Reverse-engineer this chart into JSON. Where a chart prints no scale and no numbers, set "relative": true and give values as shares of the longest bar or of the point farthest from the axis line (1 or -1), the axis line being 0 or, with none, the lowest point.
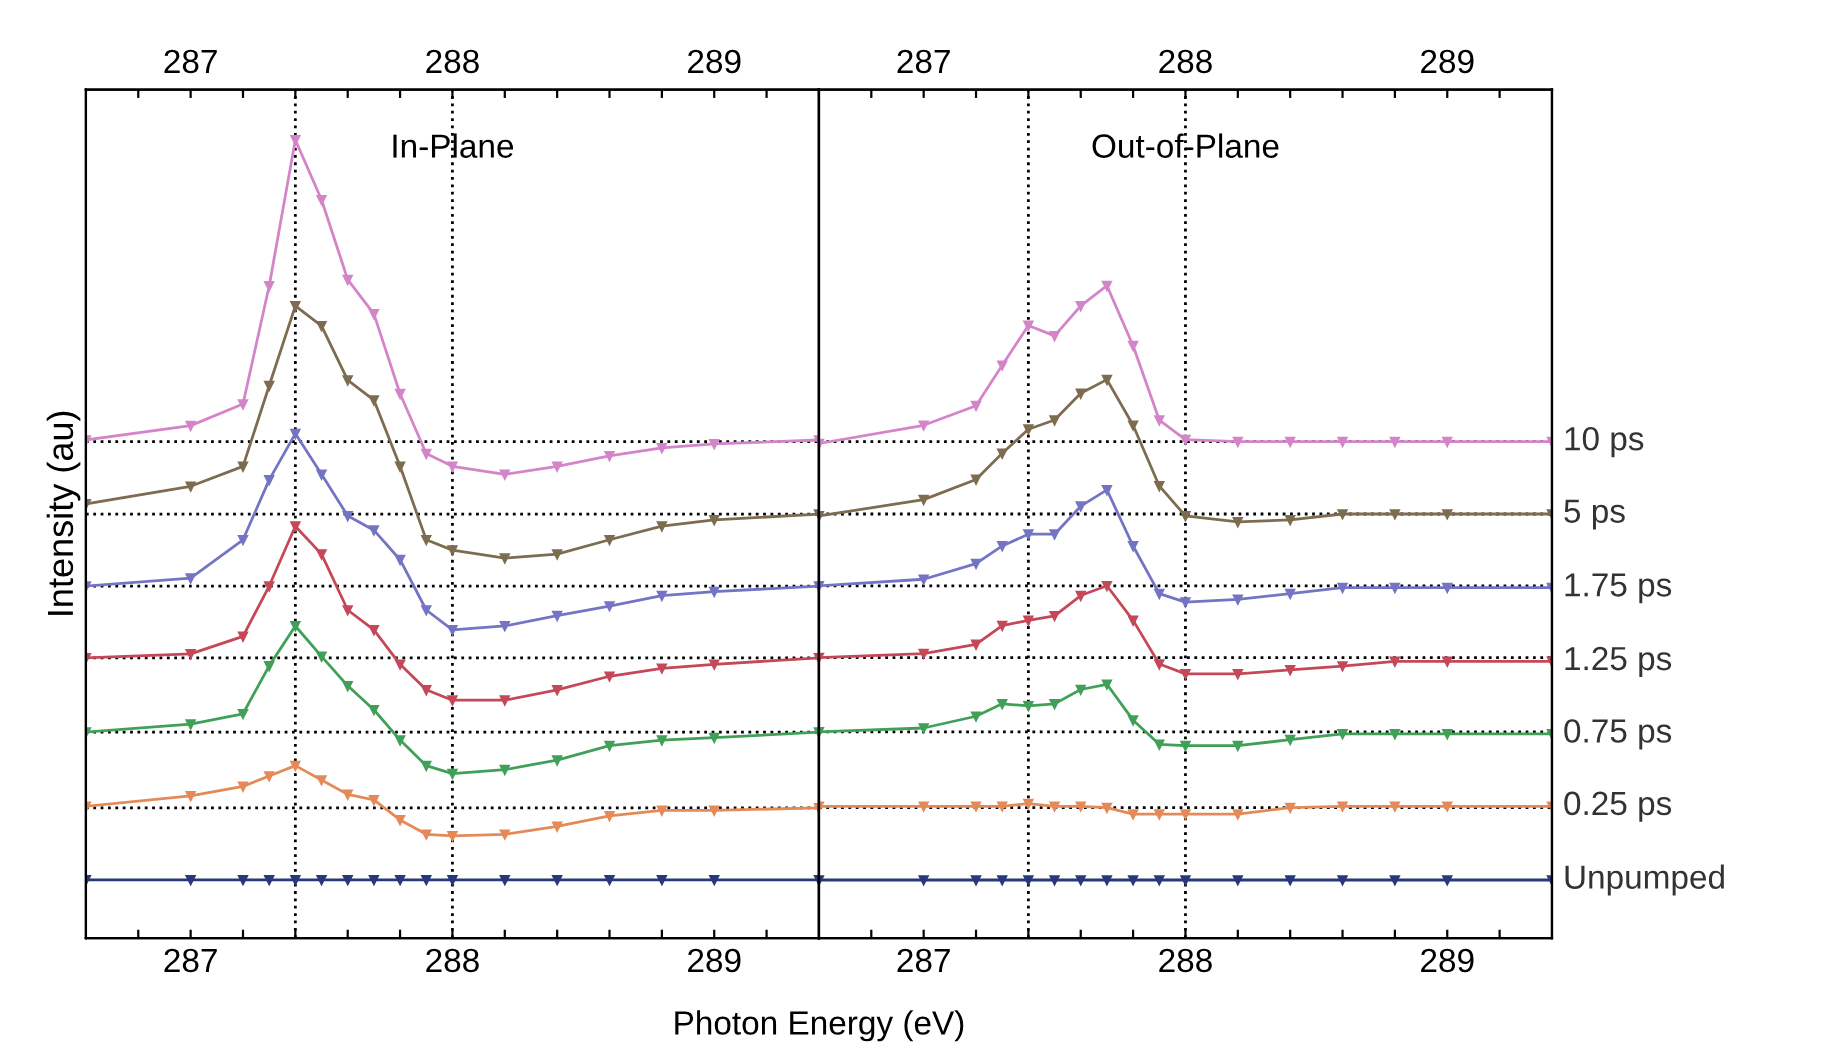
{
  "chart_data": [
    {
      "type": "line",
      "title": "In-Plane",
      "xlabel": "Photon Energy (eV)",
      "ylabel": "Intensity (au)",
      "relative": true,
      "marker": "triangle",
      "line_style": "solid",
      "legend": false,
      "grid": false,
      "x": [
        286.6,
        287.0,
        287.2,
        287.3,
        287.4,
        287.5,
        287.6,
        287.7,
        287.8,
        287.9,
        288.0,
        288.2,
        288.4,
        288.6,
        288.8,
        289.0,
        289.4
      ],
      "xlim": [
        286.6,
        289.4
      ],
      "x2lim": [
        286.6,
        289.4
      ],
      "xticks": [
        {
          "value": 286.8,
          "label": null
        },
        287,
        {
          "value": 287.2,
          "label": null
        },
        {
          "value": 287.4,
          "label": null
        },
        {
          "value": 287.6,
          "label": null
        },
        {
          "value": 287.8,
          "label": null
        },
        288,
        {
          "value": 288.2,
          "label": null
        },
        {
          "value": 288.4,
          "label": null
        },
        {
          "value": 288.6,
          "label": null
        },
        {
          "value": 288.8,
          "label": null
        },
        289,
        {
          "value": 289.2,
          "label": null
        }
      ],
      "x2ticks": [
        {
          "value": 286.8,
          "label": null
        },
        287,
        {
          "value": 287.2,
          "label": null
        },
        {
          "value": 287.4,
          "label": null
        },
        {
          "value": 287.6,
          "label": null
        },
        {
          "value": 287.8,
          "label": null
        },
        288,
        {
          "value": 288.2,
          "label": null
        },
        {
          "value": 288.4,
          "label": null
        },
        {
          "value": 288.6,
          "label": null
        },
        {
          "value": 288.8,
          "label": null
        },
        289,
        {
          "value": 289.2,
          "label": null
        }
      ],
      "tick_labels": "x",
      "series": [
        {
          "color": "#d484c8",
          "values": [
            0.624,
            0.642,
            0.669,
            0.817,
            1.0,
            0.925,
            0.825,
            0.782,
            0.682,
            0.607,
            0.591,
            0.581,
            0.591,
            0.604,
            0.614,
            0.619,
            0.624
          ]
        },
        {
          "color": "#7d6c4f",
          "values": [
            0.544,
            0.566,
            0.591,
            0.692,
            0.792,
            0.767,
            0.699,
            0.674,
            0.591,
            0.499,
            0.486,
            0.476,
            0.481,
            0.499,
            0.516,
            0.524,
            0.531
          ]
        },
        {
          "color": "#7474c4",
          "values": [
            0.441,
            0.451,
            0.499,
            0.574,
            0.632,
            0.581,
            0.529,
            0.511,
            0.474,
            0.411,
            0.386,
            0.391,
            0.404,
            0.416,
            0.429,
            0.434,
            0.441
          ]
        },
        {
          "color": "#c44858",
          "values": [
            0.351,
            0.356,
            0.378,
            0.441,
            0.516,
            0.481,
            0.411,
            0.386,
            0.343,
            0.311,
            0.298,
            0.298,
            0.311,
            0.328,
            0.338,
            0.343,
            0.351
          ]
        },
        {
          "color": "#40a058",
          "values": [
            0.258,
            0.268,
            0.281,
            0.341,
            0.391,
            0.353,
            0.316,
            0.286,
            0.248,
            0.216,
            0.206,
            0.211,
            0.223,
            0.241,
            0.248,
            0.251,
            0.258
          ]
        },
        {
          "color": "#e48a58",
          "values": [
            0.165,
            0.178,
            0.19,
            0.203,
            0.216,
            0.198,
            0.18,
            0.173,
            0.148,
            0.13,
            0.128,
            0.13,
            0.14,
            0.153,
            0.16,
            0.16,
            0.163
          ]
        },
        {
          "color": "#283878",
          "values": [
            0.073,
            0.073,
            0.073,
            0.073,
            0.073,
            0.073,
            0.073,
            0.073,
            0.073,
            0.073,
            0.073,
            0.073,
            0.073,
            0.073,
            0.073,
            0.073,
            0.073
          ]
        }
      ],
      "ref_lines": [
        {
          "axis": "x",
          "value": 287.4,
          "color": "#000000",
          "line_style": "dotted"
        },
        {
          "axis": "x",
          "value": 288,
          "color": "#000000",
          "line_style": "dotted"
        },
        {
          "axis": "y",
          "value": 0.622,
          "color": "#000000",
          "line_style": "dotted"
        },
        {
          "axis": "y",
          "value": 0.531,
          "color": "#000000",
          "line_style": "dotted"
        },
        {
          "axis": "y",
          "value": 0.441,
          "color": "#000000",
          "line_style": "dotted"
        },
        {
          "axis": "y",
          "value": 0.351,
          "color": "#000000",
          "line_style": "dotted"
        },
        {
          "axis": "y",
          "value": 0.258,
          "color": "#000000",
          "line_style": "dotted"
        },
        {
          "axis": "y",
          "value": 0.163,
          "color": "#000000",
          "line_style": "dotted"
        }
      ]
    },
    {
      "type": "line",
      "title": "Out-of-Plane",
      "relative": true,
      "marker": "triangle",
      "line_style": "solid",
      "legend": false,
      "grid": false,
      "x": [
        286.6,
        287.0,
        287.2,
        287.3,
        287.4,
        287.5,
        287.6,
        287.7,
        287.8,
        287.9,
        288.0,
        288.2,
        288.4,
        288.6,
        288.8,
        289.0,
        289.4
      ],
      "xlim": [
        286.6,
        289.4
      ],
      "x2lim": [
        286.6,
        289.4
      ],
      "xticks": [
        {
          "value": 286.8,
          "label": null
        },
        287,
        {
          "value": 287.2,
          "label": null
        },
        {
          "value": 287.4,
          "label": null
        },
        {
          "value": 287.6,
          "label": null
        },
        {
          "value": 287.8,
          "label": null
        },
        288,
        {
          "value": 288.2,
          "label": null
        },
        {
          "value": 288.4,
          "label": null
        },
        {
          "value": 288.6,
          "label": null
        },
        {
          "value": 288.8,
          "label": null
        },
        289,
        {
          "value": 289.2,
          "label": null
        }
      ],
      "x2ticks": [
        {
          "value": 286.8,
          "label": null
        },
        287,
        {
          "value": 287.2,
          "label": null
        },
        {
          "value": 287.4,
          "label": null
        },
        {
          "value": 287.6,
          "label": null
        },
        {
          "value": 287.8,
          "label": null
        },
        288,
        {
          "value": 288.2,
          "label": null
        },
        {
          "value": 288.4,
          "label": null
        },
        {
          "value": 288.6,
          "label": null
        },
        {
          "value": 288.8,
          "label": null
        },
        289,
        {
          "value": 289.2,
          "label": null
        }
      ],
      "tick_labels": "x",
      "series": [
        {
          "name": "10 ps",
          "color": "#d484c8",
          "values": [
            0.758,
            0.786,
            0.816,
            0.878,
            0.939,
            0.923,
            0.969,
            1.0,
            0.908,
            0.794,
            0.764,
            0.761,
            0.761,
            0.761,
            0.761,
            0.761,
            0.761
          ]
        },
        {
          "name": "5 ps",
          "color": "#7d6c4f",
          "values": [
            0.647,
            0.672,
            0.703,
            0.743,
            0.78,
            0.794,
            0.835,
            0.856,
            0.786,
            0.693,
            0.647,
            0.638,
            0.641,
            0.65,
            0.65,
            0.65,
            0.65
          ]
        },
        {
          "name": "1.75 ps",
          "color": "#7474c4",
          "values": [
            0.54,
            0.55,
            0.574,
            0.601,
            0.619,
            0.619,
            0.662,
            0.687,
            0.601,
            0.528,
            0.515,
            0.519,
            0.528,
            0.537,
            0.537,
            0.537,
            0.537
          ]
        },
        {
          "name": "1.25 ps",
          "color": "#c44858",
          "values": [
            0.43,
            0.436,
            0.45,
            0.479,
            0.487,
            0.494,
            0.525,
            0.54,
            0.487,
            0.42,
            0.405,
            0.405,
            0.411,
            0.417,
            0.424,
            0.424,
            0.424
          ]
        },
        {
          "name": "0.75 ps",
          "color": "#40a058",
          "values": [
            0.316,
            0.322,
            0.34,
            0.359,
            0.356,
            0.359,
            0.381,
            0.389,
            0.334,
            0.297,
            0.295,
            0.295,
            0.304,
            0.313,
            0.313,
            0.313,
            0.313
          ]
        },
        {
          "name": "0.25 ps",
          "color": "#e48a58",
          "values": [
            0.202,
            0.202,
            0.202,
            0.202,
            0.206,
            0.202,
            0.202,
            0.2,
            0.19,
            0.19,
            0.19,
            0.19,
            0.2,
            0.202,
            0.202,
            0.202,
            0.202
          ]
        },
        {
          "name": "Unpumped",
          "color": "#283878",
          "values": [
            0.089,
            0.089,
            0.089,
            0.089,
            0.089,
            0.089,
            0.089,
            0.089,
            0.089,
            0.089,
            0.089,
            0.089,
            0.089,
            0.089,
            0.089,
            0.089,
            0.089
          ]
        }
      ],
      "ref_lines": [
        {
          "axis": "x",
          "value": 287.4,
          "color": "#000000",
          "line_style": "dotted"
        },
        {
          "axis": "x",
          "value": 288,
          "color": "#000000",
          "line_style": "dotted"
        },
        {
          "axis": "y",
          "value": 0.761,
          "color": "#000000",
          "line_style": "dotted"
        },
        {
          "axis": "y",
          "value": 0.65,
          "color": "#000000",
          "line_style": "dotted"
        },
        {
          "axis": "y",
          "value": 0.54,
          "color": "#000000",
          "line_style": "dotted"
        },
        {
          "axis": "y",
          "value": 0.43,
          "color": "#000000",
          "line_style": "dotted"
        },
        {
          "axis": "y",
          "value": 0.316,
          "color": "#000000",
          "line_style": "dotted"
        },
        {
          "axis": "y",
          "value": 0.2,
          "color": "#000000",
          "line_style": "dotted"
        }
      ]
    }
  ]
}
